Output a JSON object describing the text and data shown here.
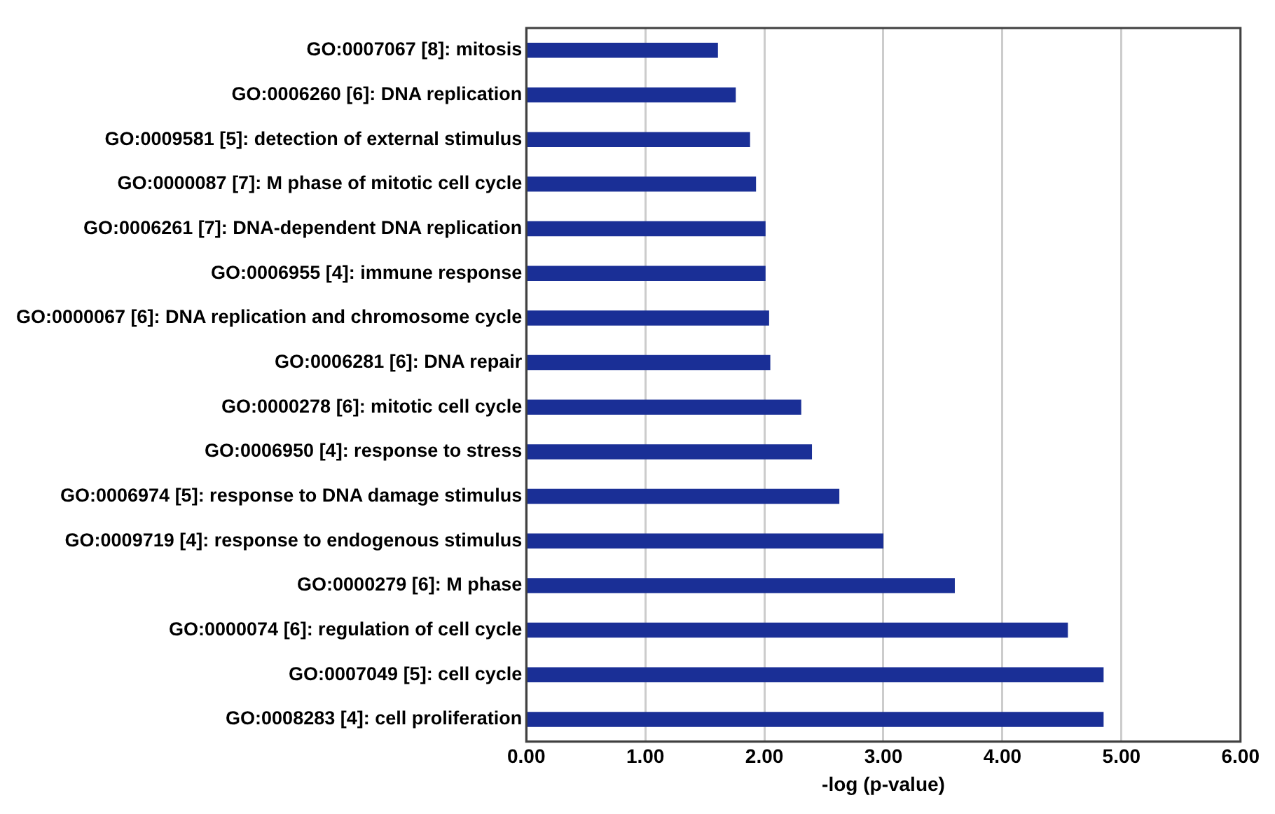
{
  "chart_data": {
    "type": "bar",
    "orientation": "horizontal",
    "xlabel": "-log (p-value)",
    "categories": [
      "GO:0007067 [8]: mitosis",
      "GO:0006260 [6]: DNA replication",
      "GO:0009581 [5]: detection of external stimulus",
      "GO:0000087 [7]: M phase of mitotic cell cycle",
      "GO:0006261 [7]: DNA-dependent DNA replication",
      "GO:0006955 [4]: immune response",
      "GO:0000067 [6]: DNA replication and chromosome cycle",
      "GO:0006281 [6]: DNA repair",
      "GO:0000278 [6]: mitotic cell cycle",
      "GO:0006950 [4]: response to stress",
      "GO:0006974 [5]: response to DNA damage stimulus",
      "GO:0009719 [4]: response to endogenous stimulus",
      "GO:0000279 [6]: M phase",
      "GO:0000074 [6]: regulation of cell cycle",
      "GO:0007049 [5]: cell cycle",
      "GO:0008283 [4]: cell proliferation"
    ],
    "values": [
      1.61,
      1.76,
      1.88,
      1.93,
      2.01,
      2.01,
      2.04,
      2.05,
      2.31,
      2.4,
      2.63,
      3.0,
      3.6,
      4.55,
      4.85,
      4.85
    ],
    "color": "#1a2f96",
    "xlim": [
      0,
      6
    ],
    "xticks": [
      {
        "value": 0,
        "label": "0.00"
      },
      {
        "value": 1,
        "label": "1.00"
      },
      {
        "value": 2,
        "label": "2.00"
      },
      {
        "value": 3,
        "label": "3.00"
      },
      {
        "value": 4,
        "label": "4.00"
      },
      {
        "value": 5,
        "label": "5.00"
      },
      {
        "value": 6,
        "label": "6.00"
      }
    ],
    "grid": "x",
    "legend": false
  }
}
